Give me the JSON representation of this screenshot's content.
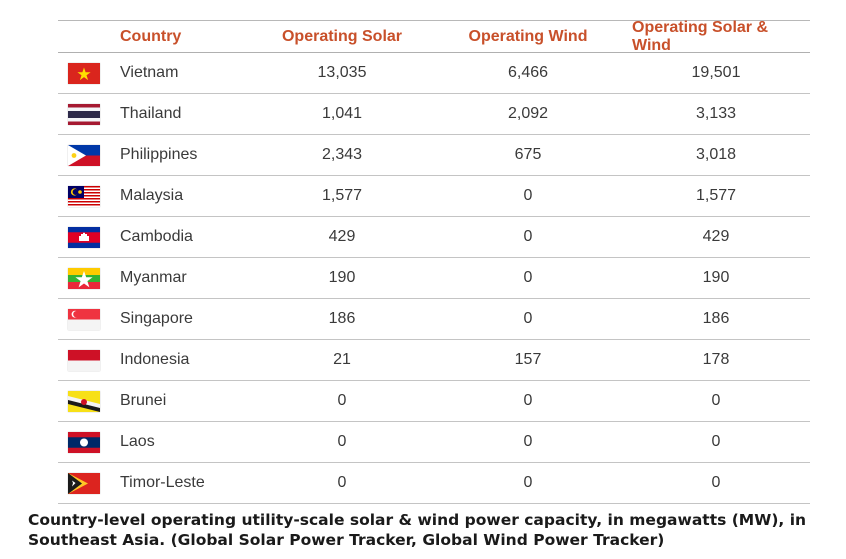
{
  "header": {
    "country": "Country",
    "operating_solar": "Operating Solar",
    "operating_wind": "Operating Wind",
    "operating_both": "Operating Solar & Wind"
  },
  "rows": [
    {
      "country": "Vietnam",
      "flag": "vietnam-flag-icon",
      "solar": "13,035",
      "wind": "6,466",
      "total": "19,501"
    },
    {
      "country": "Thailand",
      "flag": "thailand-flag-icon",
      "solar": "1,041",
      "wind": "2,092",
      "total": "3,133"
    },
    {
      "country": "Philippines",
      "flag": "philippines-flag-icon",
      "solar": "2,343",
      "wind": "675",
      "total": "3,018"
    },
    {
      "country": "Malaysia",
      "flag": "malaysia-flag-icon",
      "solar": "1,577",
      "wind": "0",
      "total": "1,577"
    },
    {
      "country": "Cambodia",
      "flag": "cambodia-flag-icon",
      "solar": "429",
      "wind": "0",
      "total": "429"
    },
    {
      "country": "Myanmar",
      "flag": "myanmar-flag-icon",
      "solar": "190",
      "wind": "0",
      "total": "190"
    },
    {
      "country": "Singapore",
      "flag": "singapore-flag-icon",
      "solar": "186",
      "wind": "0",
      "total": "186"
    },
    {
      "country": "Indonesia",
      "flag": "indonesia-flag-icon",
      "solar": "21",
      "wind": "157",
      "total": "178"
    },
    {
      "country": "Brunei",
      "flag": "brunei-flag-icon",
      "solar": "0",
      "wind": "0",
      "total": "0"
    },
    {
      "country": "Laos",
      "flag": "laos-flag-icon",
      "solar": "0",
      "wind": "0",
      "total": "0"
    },
    {
      "country": "Timor-Leste",
      "flag": "timor-leste-flag-icon",
      "solar": "0",
      "wind": "0",
      "total": "0"
    }
  ],
  "caption": "Country-level operating utility-scale solar & wind power capacity, in megawatts (MW), in Southeast Asia. (Global Solar Power Tracker, Global Wind Power Tracker)",
  "colors": {
    "header_text": "#c8502a",
    "body_text": "#3a3a3a",
    "row_divider": "#c4c4c4"
  }
}
